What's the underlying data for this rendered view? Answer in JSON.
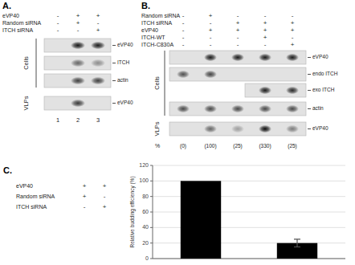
{
  "chart_data": [
    {
      "type": "blot",
      "title": "A.",
      "annotations": {
        "row_labels": [
          "eVP40",
          "Random siRNA",
          "ITCH siRNA"
        ],
        "signs": [
          [
            "-",
            "+",
            "+"
          ],
          [
            "-",
            "+",
            "-"
          ],
          [
            "-",
            "-",
            "+"
          ]
        ],
        "blot_labels": [
          "eVP40",
          "ITCH",
          "actin",
          "eVP40"
        ],
        "group_labels": [
          "Cells",
          "VLPs"
        ],
        "lane_labels": [
          "1",
          "2",
          "3"
        ]
      }
    },
    {
      "type": "blot",
      "title": "B.",
      "annotations": {
        "row_labels": [
          "Random siRNA",
          "ITCH siRNA",
          "eVP40",
          "ITCH-WT",
          "ITCH-C830A"
        ],
        "signs": [
          [
            "-",
            "+",
            "-",
            "-",
            "-"
          ],
          [
            "-",
            "-",
            "+",
            "+",
            "+"
          ],
          [
            "-",
            "+",
            "+",
            "+",
            "+"
          ],
          [
            "-",
            "-",
            "-",
            "+",
            "-"
          ],
          [
            "-",
            "-",
            "-",
            "-",
            "+"
          ]
        ],
        "blot_labels": [
          "eVP40",
          "endo ITCH",
          "exo ITCH",
          "actin",
          "eVP40"
        ],
        "group_labels": [
          "Cells",
          "VLPs"
        ],
        "pct_header": "%",
        "pct_labels": [
          "(0)",
          "(100)",
          "(25)",
          "(330)",
          "(25)"
        ]
      }
    },
    {
      "type": "bar",
      "title": "C.",
      "categories": [
        null,
        null
      ],
      "values": [
        100,
        20
      ],
      "errors": [
        0,
        5
      ],
      "colors": [
        "#000000",
        "#000000"
      ],
      "ylabel": "Relative  budding efficiency (%)",
      "ylim": [
        0,
        120
      ],
      "yticks": [
        0,
        20,
        40,
        60,
        80,
        100,
        120
      ],
      "grid": true,
      "tick_labels": "y",
      "annotations": {
        "row_labels": [
          "eVP40",
          "Random siRNA",
          "ITCH siRNA"
        ],
        "signs": [
          [
            "+",
            "+"
          ],
          [
            "+",
            "-"
          ],
          [
            "-",
            "+"
          ]
        ]
      }
    }
  ]
}
